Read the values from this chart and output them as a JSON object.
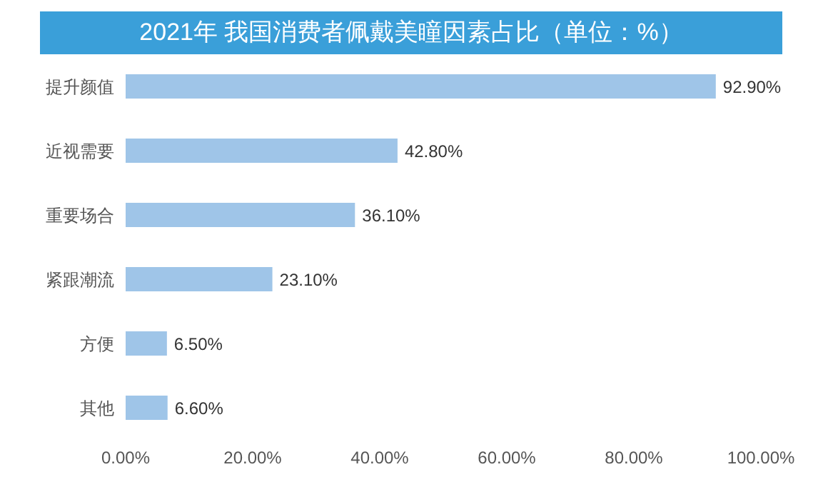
{
  "chart_data": {
    "type": "bar",
    "orientation": "horizontal",
    "title": "2021年 我国消费者佩戴美瞳因素占比（单位：%）",
    "categories": [
      "提升颜值",
      "近视需要",
      "重要场合",
      "紧跟潮流",
      "方便",
      "其他"
    ],
    "values": [
      92.9,
      42.8,
      36.1,
      23.1,
      6.5,
      6.6
    ],
    "value_labels": [
      "92.90%",
      "42.80%",
      "36.10%",
      "23.10%",
      "6.50%",
      "6.60%"
    ],
    "color": "#9fc5e8",
    "xlim": [
      0,
      100
    ],
    "xticks": [
      {
        "value": 0,
        "label": "0.00%"
      },
      {
        "value": 20,
        "label": "20.00%"
      },
      {
        "value": 40,
        "label": "40.00%"
      },
      {
        "value": 60,
        "label": "60.00%"
      },
      {
        "value": 80,
        "label": "80.00%"
      },
      {
        "value": 100,
        "label": "100.00%"
      }
    ]
  }
}
